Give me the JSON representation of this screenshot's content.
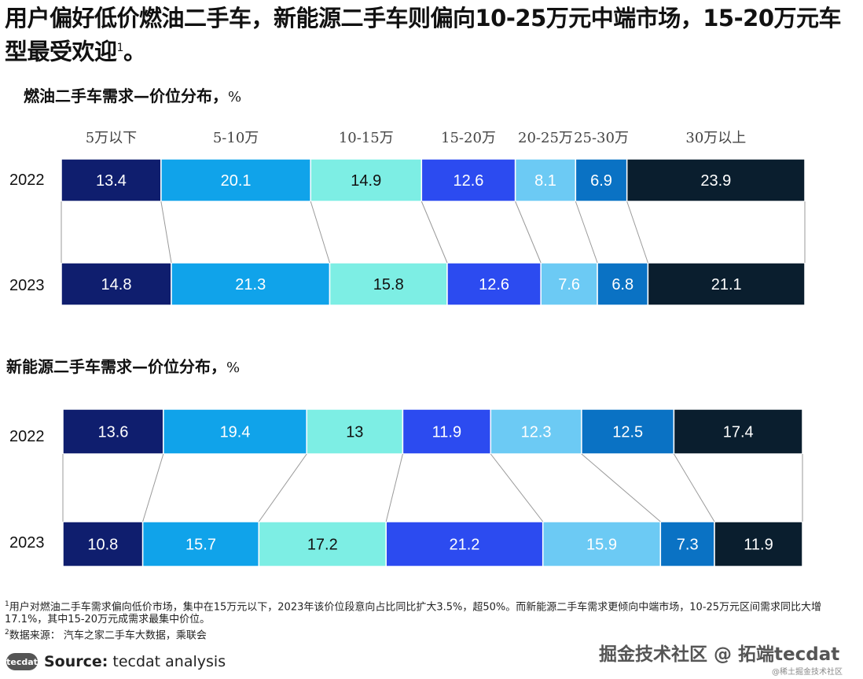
{
  "title": "用户偏好低价燃油二手车，新能源二手车则偏向10-25万元中端市场，15-20万元车型最受欢迎",
  "title_footnote_mark": "1",
  "title_end": "。",
  "colors": [
    "#0f1e6e",
    "#10a3ea",
    "#7deee4",
    "#2c4bf0",
    "#6ccaf4",
    "#0a72c4",
    "#0a1e2e"
  ],
  "chart_data": [
    {
      "type": "bar",
      "subtype": "stacked-horizontal-100",
      "title": "燃油二手车需求—价位分布，",
      "unit": "%",
      "categories": [
        "5万以下",
        "5-10万",
        "10-15万",
        "15-20万",
        "20-25万",
        "25-30万",
        "30万以上"
      ],
      "series": [
        {
          "name": "2022",
          "values": [
            13.4,
            20.1,
            14.9,
            12.6,
            8.1,
            6.9,
            23.9
          ]
        },
        {
          "name": "2023",
          "values": [
            14.8,
            21.3,
            15.8,
            12.6,
            7.6,
            6.8,
            21.1
          ]
        }
      ],
      "legend_position": "top"
    },
    {
      "type": "bar",
      "subtype": "stacked-horizontal-100",
      "title": "新能源二手车需求—价位分布，",
      "unit": "%",
      "categories": [
        "5万以下",
        "5-10万",
        "10-15万",
        "15-20万",
        "20-25万",
        "25-30万",
        "30万以上"
      ],
      "series": [
        {
          "name": "2022",
          "values": [
            13.6,
            19.4,
            13.0,
            11.9,
            12.3,
            12.5,
            17.4
          ]
        },
        {
          "name": "2023",
          "values": [
            10.8,
            15.7,
            17.2,
            21.2,
            15.9,
            7.3,
            11.9
          ]
        }
      ]
    }
  ],
  "footnotes": {
    "note1_mark": "1",
    "note1": "用户对燃油二手车需求偏向低价市场，集中在15万元以下，2023年该价位段意向占比同比扩大3.5%，超50%。而新能源二手车需求更倾向中端市场，10-25万元区间需求同比大增17.1%，其中15-20万元成需求最集中价位。",
    "note2_mark": "2",
    "note2": "数据来源：  汽车之家二手车大数据，乘联会"
  },
  "source": {
    "logo": "tecdat",
    "label": "Source:",
    "text": "tecdat analysis"
  },
  "watermark": "掘金技术社区 @ 拓端tecdat",
  "watermark_small": "@稀土掘金技术社区"
}
